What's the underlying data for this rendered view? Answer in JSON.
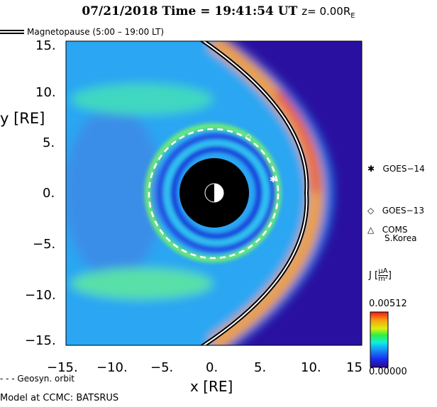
{
  "header": {
    "date": "07/21/2018",
    "time_label": "Time =",
    "time": "19:41:54 UT",
    "z_label": "z=",
    "z_value": "0.00R",
    "z_sub": "E"
  },
  "legend": {
    "magnetopause": "Magnetopause (5:00 – 19:00 LT)",
    "geosyn": "- - - Geosyn. orbit"
  },
  "footer": "Model at CCMC: BATSRUS",
  "satellites": [
    {
      "name": "GOES−14",
      "symbol": "✱",
      "x": 6.3,
      "y": 1.2
    },
    {
      "name": "GOES−13",
      "symbol": "◇",
      "x": 3.8,
      "y": 5.3
    },
    {
      "name": "COMS",
      "name2": "S.Korea",
      "symbol": "△"
    }
  ],
  "colorbar": {
    "label": "J",
    "unit_num": "μA",
    "unit_den": "m²",
    "max": "0.00512",
    "min": "0.00000",
    "colors": [
      "#2a0a8a",
      "#1a2cf0",
      "#14a8f5",
      "#10f0e0",
      "#2ef040",
      "#d8f010",
      "#f8a010",
      "#f01818"
    ]
  },
  "chart_data": {
    "type": "heatmap",
    "title": "07/21/2018 Time = 19:41:54 UT z= 0.00RE",
    "xlabel": "x [RE]",
    "ylabel": "y [RE]",
    "xlim": [
      -15,
      15
    ],
    "ylim": [
      -15,
      15
    ],
    "xticks": [
      "−15.",
      "−10.",
      "−5.",
      "0.",
      "5.",
      "10.",
      "15"
    ],
    "yticks": [
      "15.",
      "10.",
      "5.",
      "0.",
      "−5.",
      "−10.",
      "−15."
    ],
    "quantity": "J [μA/m²]",
    "range": [
      0,
      0.00512
    ],
    "magnetopause_subsolar_x": 9.5,
    "geosyn_orbit_radius": 6.6
  }
}
